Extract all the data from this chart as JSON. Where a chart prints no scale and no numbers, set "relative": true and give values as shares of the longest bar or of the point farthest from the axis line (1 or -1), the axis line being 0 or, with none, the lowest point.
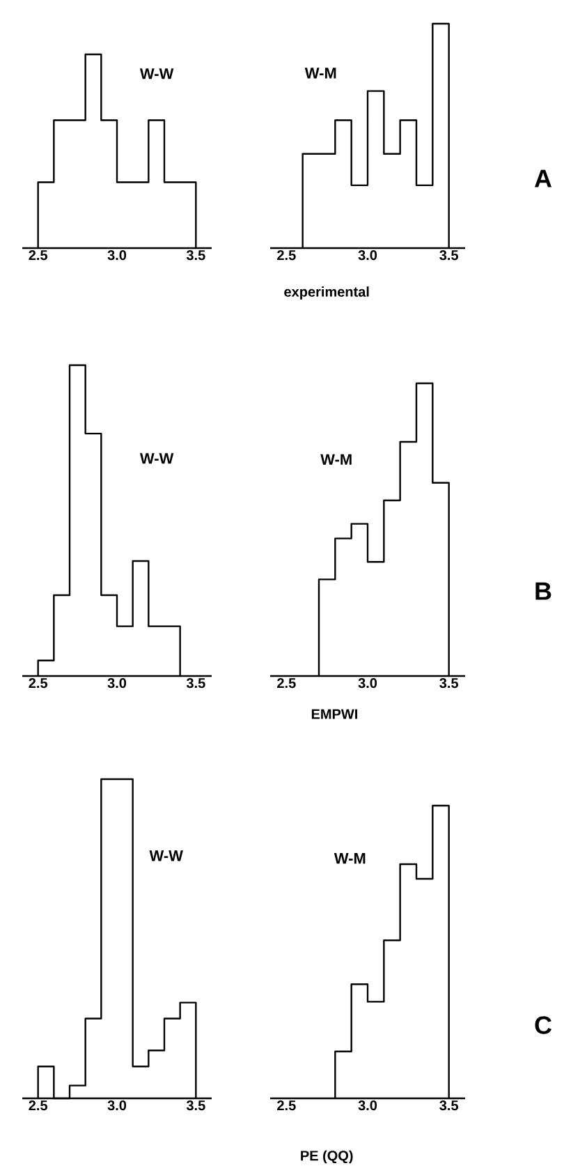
{
  "chart_data": [
    {
      "type": "step",
      "title": "W-W",
      "relative": true,
      "color": "#000000",
      "x": [
        2.5,
        2.5,
        2.6,
        2.7,
        2.8,
        2.9,
        3.0,
        3.1,
        3.2,
        3.3,
        3.4,
        3.5
      ],
      "values": [
        0,
        0.34,
        0.66,
        0.66,
        1,
        0.66,
        0.34,
        0.34,
        0.66,
        0.34,
        0.34,
        0
      ],
      "xlim": [
        2.4,
        3.6
      ],
      "xticks": [
        {
          "value": 2.5,
          "label": "2.5"
        },
        {
          "value": 3,
          "label": "3.0"
        },
        {
          "value": 3.5,
          "label": "3.5"
        }
      ]
    },
    {
      "type": "step",
      "title": "W-M",
      "xlabel": "experimental",
      "annotations": [
        "A"
      ],
      "relative": true,
      "color": "#000000",
      "x": [
        2.6,
        2.6,
        2.7,
        2.8,
        2.9,
        3.0,
        3.1,
        3.2,
        3.3,
        3.4,
        3.5
      ],
      "values": [
        0,
        0.42,
        0.42,
        0.57,
        0.28,
        0.7,
        0.42,
        0.57,
        0.28,
        1,
        0
      ],
      "xlim": [
        2.4,
        3.6
      ],
      "xticks": [
        {
          "value": 2.5,
          "label": "2.5"
        },
        {
          "value": 3,
          "label": "3.0"
        },
        {
          "value": 3.5,
          "label": "3.5"
        }
      ]
    },
    {
      "type": "step",
      "title": "W-W",
      "relative": true,
      "color": "#000000",
      "x": [
        2.5,
        2.5,
        2.6,
        2.7,
        2.8,
        2.9,
        3.0,
        3.1,
        3.2,
        3.3,
        3.4
      ],
      "values": [
        0,
        0.05,
        0.26,
        1,
        0.78,
        0.26,
        0.16,
        0.37,
        0.16,
        0.16,
        0
      ],
      "xlim": [
        2.4,
        3.6
      ],
      "xticks": [
        {
          "value": 2.5,
          "label": "2.5"
        },
        {
          "value": 3,
          "label": "3.0"
        },
        {
          "value": 3.5,
          "label": "3.5"
        }
      ]
    },
    {
      "type": "step",
      "title": "W-M",
      "xlabel": "EMPWI",
      "annotations": [
        "B"
      ],
      "relative": true,
      "color": "#000000",
      "x": [
        2.7,
        2.7,
        2.8,
        2.9,
        3.0,
        3.1,
        3.2,
        3.3,
        3.4,
        3.5
      ],
      "values": [
        0,
        0.33,
        0.47,
        0.52,
        0.39,
        0.6,
        0.8,
        1,
        0.66,
        0
      ],
      "xlim": [
        2.4,
        3.6
      ],
      "xticks": [
        {
          "value": 2.5,
          "label": "2.5"
        },
        {
          "value": 3,
          "label": "3.0"
        },
        {
          "value": 3.5,
          "label": "3.5"
        }
      ]
    },
    {
      "type": "step",
      "title": "W-W",
      "relative": true,
      "color": "#000000",
      "x": [
        2.5,
        2.5,
        2.6,
        2.7,
        2.8,
        2.9,
        3.0,
        3.1,
        3.2,
        3.3,
        3.4,
        3.5
      ],
      "values": [
        0,
        0.1,
        0,
        0.04,
        0.25,
        1,
        1,
        0.1,
        0.15,
        0.25,
        0.3,
        0
      ],
      "xlim": [
        2.4,
        3.6
      ],
      "xticks": [
        {
          "value": 2.5,
          "label": "2.5"
        },
        {
          "value": 3,
          "label": "3.0"
        },
        {
          "value": 3.5,
          "label": "3.5"
        }
      ]
    },
    {
      "type": "step",
      "title": "W-M",
      "xlabel": "PE (QQ)",
      "annotations": [
        "C"
      ],
      "relative": true,
      "color": "#000000",
      "x": [
        2.8,
        2.8,
        2.9,
        3.0,
        3.1,
        3.2,
        3.3,
        3.4,
        3.5
      ],
      "values": [
        0,
        0.16,
        0.39,
        0.33,
        0.54,
        0.8,
        0.75,
        1,
        0
      ],
      "xlim": [
        2.4,
        3.6
      ],
      "xticks": [
        {
          "value": 2.5,
          "label": "2.5"
        },
        {
          "value": 3,
          "label": "3.0"
        },
        {
          "value": 3.5,
          "label": "3.5"
        }
      ]
    }
  ]
}
